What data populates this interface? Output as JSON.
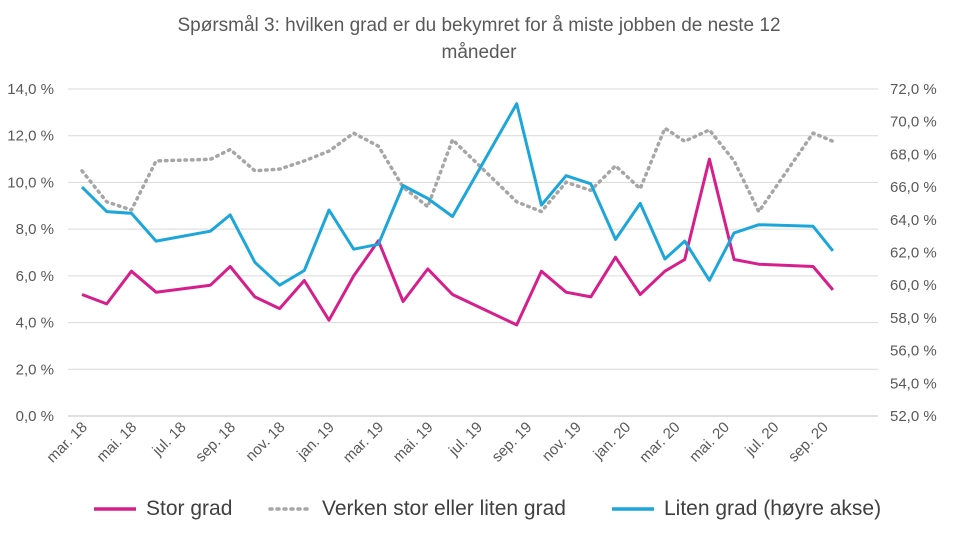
{
  "chart_data": {
    "type": "line",
    "title": "Spørsmål 3: hvilken grad er du bekymret for å miste jobben de neste 12 måneder",
    "title_lines": [
      "Spørsmål 3: hvilken grad er du bekymret for å miste jobben de neste 12",
      "måneder"
    ],
    "x_tick_labels": [
      "mar. 18",
      "mai. 18",
      "jul. 18",
      "sep. 18",
      "nov. 18",
      "jan. 19",
      "mar. 19",
      "mai. 19",
      "jul. 19",
      "sep. 19",
      "nov. 19",
      "jan. 20",
      "mar. 20",
      "mai. 20",
      "jul. 20",
      "sep. 20"
    ],
    "y_left": {
      "range": [
        0,
        14
      ],
      "ticks": [
        "0,0 %",
        "2,0 %",
        "4,0 %",
        "6,0 %",
        "8,0 %",
        "10,0 %",
        "12,0 %",
        "14,0 %"
      ]
    },
    "y_right": {
      "range": [
        52,
        72
      ],
      "ticks": [
        "52,0 %",
        "54,0 %",
        "56,0 %",
        "58,0 %",
        "60,0 %",
        "62,0 %",
        "64,0 %",
        "66,0 %",
        "68,0 %",
        "70,0 %",
        "72,0 %"
      ]
    },
    "grid": "horizontal",
    "legend_position": "bottom",
    "series": [
      {
        "name": "Stor grad",
        "axis": "left",
        "color": "#D61F8C",
        "style": "solid",
        "points": [
          [
            0,
            5.2
          ],
          [
            0.5,
            4.8
          ],
          [
            1,
            6.2
          ],
          [
            1.5,
            5.3
          ],
          [
            2.6,
            5.6
          ],
          [
            3,
            6.4
          ],
          [
            3.5,
            5.1
          ],
          [
            4,
            4.6
          ],
          [
            4.5,
            5.8
          ],
          [
            5,
            4.1
          ],
          [
            5.5,
            6.0
          ],
          [
            6,
            7.5
          ],
          [
            6.5,
            4.9
          ],
          [
            7,
            6.3
          ],
          [
            7.5,
            5.2
          ],
          [
            8.8,
            3.9
          ],
          [
            9.3,
            6.2
          ],
          [
            9.8,
            5.3
          ],
          [
            10.3,
            5.1
          ],
          [
            10.8,
            6.8
          ],
          [
            11.3,
            5.2
          ],
          [
            11.8,
            6.2
          ],
          [
            12.2,
            6.7
          ],
          [
            12.7,
            11.0
          ],
          [
            13.2,
            6.7
          ],
          [
            13.7,
            6.5
          ],
          [
            14.8,
            6.4
          ],
          [
            15.2,
            5.4
          ]
        ]
      },
      {
        "name": "Verken stor eller liten grad",
        "axis": "right",
        "color": "#A6A6A6",
        "style": "dotted",
        "points": [
          [
            0,
            67.0
          ],
          [
            0.5,
            65.1
          ],
          [
            1,
            64.6
          ],
          [
            1.5,
            67.6
          ],
          [
            2.6,
            67.7
          ],
          [
            3,
            68.3
          ],
          [
            3.5,
            67.0
          ],
          [
            4,
            67.1
          ],
          [
            4.5,
            67.6
          ],
          [
            5,
            68.2
          ],
          [
            5.5,
            69.3
          ],
          [
            6,
            68.5
          ],
          [
            6.5,
            66.0
          ],
          [
            7,
            64.8
          ],
          [
            7.5,
            68.9
          ],
          [
            8.8,
            65.1
          ],
          [
            9.3,
            64.5
          ],
          [
            9.8,
            66.3
          ],
          [
            10.3,
            65.8
          ],
          [
            10.8,
            67.3
          ],
          [
            11.3,
            65.9
          ],
          [
            11.8,
            69.6
          ],
          [
            12.2,
            68.8
          ],
          [
            12.7,
            69.5
          ],
          [
            13.2,
            67.6
          ],
          [
            13.7,
            64.5
          ],
          [
            14.8,
            69.3
          ],
          [
            15.2,
            68.8
          ]
        ]
      },
      {
        "name": "Liten grad (høyre akse)",
        "axis": "right",
        "color": "#1CA6D9",
        "style": "solid",
        "points": [
          [
            0,
            66.0
          ],
          [
            0.5,
            64.5
          ],
          [
            1,
            64.4
          ],
          [
            1.5,
            62.7
          ],
          [
            2.6,
            63.3
          ],
          [
            3,
            64.3
          ],
          [
            3.5,
            61.4
          ],
          [
            4,
            60.0
          ],
          [
            4.5,
            60.9
          ],
          [
            5,
            64.6
          ],
          [
            5.5,
            62.2
          ],
          [
            6,
            62.5
          ],
          [
            6.5,
            66.1
          ],
          [
            7,
            65.3
          ],
          [
            7.5,
            64.2
          ],
          [
            8.8,
            71.1
          ],
          [
            9.3,
            64.9
          ],
          [
            9.8,
            66.7
          ],
          [
            10.3,
            66.2
          ],
          [
            10.8,
            62.8
          ],
          [
            11.3,
            65.0
          ],
          [
            11.8,
            61.6
          ],
          [
            12.2,
            62.7
          ],
          [
            12.7,
            60.3
          ],
          [
            13.2,
            63.2
          ],
          [
            13.7,
            63.7
          ],
          [
            14.8,
            63.6
          ],
          [
            15.2,
            62.1
          ]
        ]
      }
    ]
  }
}
